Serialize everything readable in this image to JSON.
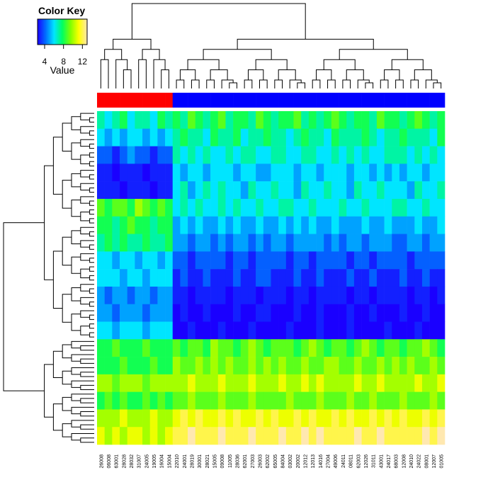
{
  "chart_data": {
    "type": "heatmap",
    "color_key": {
      "title": "Color Key",
      "label": "Value",
      "xlim": [
        2.5,
        13
      ],
      "xticks": [
        4,
        8,
        12
      ],
      "colors": [
        "#1a00ff",
        "#0070ff",
        "#00e5ff",
        "#00ff60",
        "#80ff00",
        "#ffff00",
        "#ffe8b0"
      ]
    },
    "columns": [
      "26008",
      "06008",
      "63001",
      "28028",
      "28032",
      "31007",
      "24005",
      "19005",
      "16004",
      "15004",
      "22010",
      "24001",
      "28019",
      "30001",
      "28021",
      "15005",
      "09008",
      "11005",
      "28036",
      "62001",
      "27003",
      "26003",
      "62002",
      "65005",
      "84004",
      "03002",
      "20002",
      "12012",
      "12013",
      "14016",
      "27004",
      "49006",
      "24011",
      "08011",
      "62003",
      "12026",
      "31011",
      "43001",
      "24017",
      "68003",
      "12008",
      "24010",
      "24022",
      "08001",
      "12007",
      "01005"
    ],
    "column_colors": [
      "#ff0000",
      "#ff0000",
      "#ff0000",
      "#ff0000",
      "#ff0000",
      "#ff0000",
      "#ff0000",
      "#ff0000",
      "#ff0000",
      "#ff0000",
      "#0000ff",
      "#0000ff",
      "#0000ff",
      "#0000ff",
      "#0000ff",
      "#0000ff",
      "#0000ff",
      "#0000ff",
      "#0000ff",
      "#0000ff",
      "#0000ff",
      "#0000ff",
      "#0000ff",
      "#0000ff",
      "#0000ff",
      "#0000ff",
      "#0000ff",
      "#0000ff",
      "#0000ff",
      "#0000ff",
      "#0000ff",
      "#0000ff",
      "#0000ff",
      "#0000ff",
      "#0000ff",
      "#0000ff",
      "#0000ff",
      "#0000ff",
      "#0000ff",
      "#0000ff",
      "#0000ff",
      "#0000ff",
      "#0000ff",
      "#0000ff",
      "#0000ff",
      "#0000ff"
    ],
    "values": [
      [
        7,
        6,
        7,
        8,
        6,
        7,
        7,
        6,
        8,
        7,
        8,
        7,
        9,
        8,
        7,
        8,
        9,
        7,
        8,
        8,
        7,
        9,
        8,
        7,
        8,
        8,
        9,
        7,
        8,
        7,
        8,
        9,
        8,
        7,
        8,
        8,
        7,
        9,
        8,
        8,
        7,
        8,
        9,
        8,
        7,
        8
      ],
      [
        6,
        5,
        6,
        5,
        6,
        6,
        5,
        6,
        5,
        6,
        7,
        8,
        7,
        7,
        6,
        8,
        7,
        7,
        8,
        6,
        7,
        7,
        8,
        7,
        7,
        6,
        7,
        8,
        7,
        7,
        6,
        8,
        7,
        7,
        7,
        8,
        7,
        6,
        7,
        7,
        8,
        7,
        7,
        7,
        6,
        8
      ],
      [
        4,
        4,
        3,
        4,
        5,
        4,
        4,
        3,
        4,
        4,
        7,
        6,
        7,
        6,
        7,
        6,
        6,
        7,
        6,
        7,
        7,
        6,
        6,
        7,
        7,
        6,
        6,
        7,
        7,
        6,
        6,
        7,
        6,
        7,
        6,
        7,
        6,
        6,
        7,
        7,
        7,
        6,
        7,
        6,
        7,
        6
      ],
      [
        3,
        3,
        2,
        3,
        3,
        3,
        2,
        3,
        3,
        3,
        6,
        5,
        6,
        6,
        5,
        6,
        6,
        6,
        5,
        6,
        6,
        5,
        5,
        6,
        6,
        6,
        5,
        6,
        6,
        5,
        6,
        6,
        6,
        5,
        6,
        6,
        5,
        6,
        5,
        6,
        5,
        6,
        6,
        5,
        6,
        6
      ],
      [
        3,
        3,
        3,
        2,
        3,
        3,
        3,
        2,
        3,
        3,
        6,
        7,
        5,
        6,
        7,
        6,
        7,
        6,
        6,
        5,
        7,
        6,
        6,
        7,
        6,
        6,
        5,
        7,
        6,
        6,
        7,
        6,
        6,
        5,
        7,
        6,
        6,
        7,
        6,
        6,
        6,
        5,
        7,
        6,
        6,
        7
      ],
      [
        9,
        8,
        9,
        9,
        8,
        10,
        9,
        8,
        9,
        8,
        6,
        7,
        6,
        7,
        6,
        6,
        7,
        6,
        7,
        6,
        6,
        7,
        6,
        6,
        7,
        7,
        6,
        6,
        7,
        6,
        6,
        6,
        7,
        6,
        6,
        7,
        6,
        6,
        6,
        7,
        7,
        6,
        6,
        7,
        6,
        6
      ],
      [
        8,
        8,
        7,
        8,
        9,
        8,
        8,
        7,
        8,
        8,
        5,
        6,
        5,
        6,
        5,
        5,
        6,
        5,
        6,
        5,
        5,
        6,
        5,
        5,
        6,
        5,
        6,
        5,
        6,
        5,
        5,
        6,
        5,
        5,
        5,
        6,
        5,
        5,
        6,
        5,
        5,
        5,
        6,
        5,
        5,
        6
      ],
      [
        7,
        8,
        7,
        8,
        7,
        7,
        8,
        7,
        7,
        8,
        5,
        5,
        4,
        5,
        5,
        4,
        5,
        4,
        5,
        5,
        4,
        5,
        4,
        5,
        5,
        4,
        5,
        5,
        5,
        5,
        4,
        5,
        4,
        5,
        5,
        4,
        5,
        5,
        5,
        4,
        4,
        5,
        5,
        4,
        5,
        5
      ],
      [
        6,
        6,
        5,
        6,
        6,
        5,
        6,
        6,
        5,
        6,
        4,
        4,
        3,
        4,
        4,
        4,
        4,
        3,
        4,
        4,
        3,
        4,
        4,
        4,
        4,
        3,
        4,
        4,
        3,
        4,
        4,
        4,
        4,
        3,
        4,
        4,
        3,
        4,
        4,
        4,
        4,
        3,
        4,
        4,
        4,
        4
      ],
      [
        6,
        6,
        6,
        5,
        6,
        6,
        5,
        6,
        6,
        6,
        3,
        4,
        3,
        3,
        4,
        3,
        3,
        3,
        4,
        3,
        3,
        4,
        4,
        3,
        3,
        3,
        4,
        3,
        3,
        4,
        3,
        3,
        3,
        4,
        3,
        3,
        4,
        3,
        3,
        3,
        4,
        3,
        3,
        4,
        3,
        3
      ],
      [
        5,
        4,
        5,
        5,
        4,
        5,
        5,
        4,
        5,
        5,
        3,
        3,
        2,
        3,
        3,
        3,
        3,
        2,
        3,
        3,
        3,
        2,
        3,
        3,
        3,
        2,
        3,
        3,
        2,
        3,
        3,
        3,
        3,
        2,
        3,
        3,
        2,
        3,
        3,
        3,
        3,
        2,
        3,
        3,
        2,
        3
      ],
      [
        5,
        5,
        4,
        5,
        5,
        5,
        4,
        5,
        5,
        5,
        2,
        3,
        2,
        2,
        3,
        2,
        2,
        2,
        3,
        2,
        2,
        3,
        3,
        2,
        2,
        2,
        3,
        2,
        2,
        3,
        2,
        2,
        2,
        3,
        2,
        2,
        3,
        2,
        2,
        2,
        3,
        2,
        2,
        3,
        2,
        2
      ],
      [
        6,
        6,
        5,
        6,
        6,
        6,
        5,
        6,
        6,
        6,
        2,
        2,
        3,
        2,
        2,
        2,
        3,
        2,
        2,
        2,
        3,
        2,
        2,
        2,
        2,
        3,
        2,
        2,
        2,
        3,
        2,
        2,
        2,
        3,
        2,
        2,
        2,
        2,
        3,
        2,
        2,
        2,
        3,
        2,
        2,
        2
      ],
      [
        8,
        8,
        9,
        8,
        8,
        8,
        9,
        8,
        8,
        8,
        9,
        8,
        9,
        9,
        8,
        10,
        9,
        9,
        8,
        9,
        10,
        9,
        8,
        9,
        9,
        9,
        8,
        9,
        10,
        9,
        8,
        9,
        9,
        8,
        9,
        10,
        9,
        8,
        9,
        9,
        8,
        9,
        9,
        10,
        9,
        8
      ],
      [
        8,
        8,
        8,
        9,
        8,
        8,
        8,
        9,
        8,
        8,
        10,
        9,
        9,
        10,
        9,
        10,
        9,
        10,
        9,
        9,
        10,
        9,
        10,
        9,
        10,
        9,
        9,
        10,
        9,
        9,
        10,
        10,
        9,
        9,
        10,
        9,
        9,
        10,
        9,
        10,
        9,
        10,
        9,
        9,
        10,
        9
      ],
      [
        10,
        10,
        9,
        10,
        10,
        10,
        9,
        10,
        10,
        10,
        10,
        10,
        11,
        10,
        10,
        10,
        11,
        10,
        10,
        10,
        11,
        10,
        10,
        10,
        11,
        10,
        10,
        11,
        10,
        11,
        10,
        10,
        10,
        10,
        11,
        10,
        10,
        11,
        10,
        10,
        10,
        10,
        11,
        10,
        10,
        11
      ],
      [
        8,
        9,
        8,
        9,
        8,
        8,
        9,
        8,
        9,
        8,
        9,
        9,
        10,
        9,
        9,
        9,
        10,
        9,
        9,
        9,
        10,
        9,
        9,
        9,
        9,
        10,
        9,
        9,
        9,
        10,
        9,
        9,
        9,
        10,
        9,
        9,
        10,
        9,
        9,
        9,
        10,
        9,
        9,
        9,
        10,
        9
      ],
      [
        10,
        10,
        10,
        11,
        10,
        10,
        10,
        11,
        10,
        10,
        11,
        12,
        11,
        12,
        11,
        11,
        12,
        11,
        12,
        11,
        11,
        12,
        11,
        12,
        11,
        11,
        12,
        11,
        12,
        11,
        11,
        12,
        11,
        12,
        11,
        11,
        12,
        11,
        12,
        11,
        12,
        11,
        11,
        12,
        11,
        12
      ],
      [
        11,
        10,
        11,
        10,
        11,
        11,
        10,
        11,
        10,
        11,
        12,
        12,
        13,
        12,
        12,
        12,
        13,
        12,
        12,
        12,
        13,
        12,
        12,
        12,
        13,
        12,
        12,
        13,
        12,
        13,
        12,
        12,
        12,
        12,
        13,
        12,
        12,
        13,
        12,
        12,
        12,
        12,
        12,
        13,
        12,
        13
      ]
    ]
  }
}
